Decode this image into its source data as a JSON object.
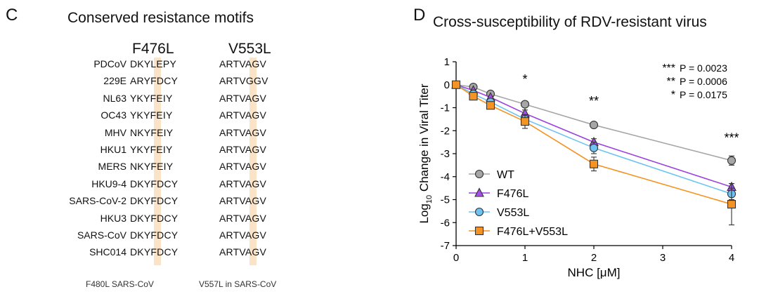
{
  "panel_c": {
    "letter": "C",
    "title": "Conserved resistance motifs",
    "headers": [
      "F476L",
      "V553L"
    ],
    "rows": [
      {
        "virus": "PDCoV",
        "motif1": "DKYLEPY",
        "motif2": "ARTVAGV"
      },
      {
        "virus": "229E",
        "motif1": "ARYFDCY",
        "motif2": "ARTVGGV"
      },
      {
        "virus": "NL63",
        "motif1": "YKYFEIY",
        "motif2": "ARTVAGV"
      },
      {
        "virus": "OC43",
        "motif1": "YKYFEIY",
        "motif2": "ARTVAGV"
      },
      {
        "virus": "MHV",
        "motif1": "NKYFEIY",
        "motif2": "ARTVAGV"
      },
      {
        "virus": "HKU1",
        "motif1": "YKYFEIY",
        "motif2": "ARTVAGV"
      },
      {
        "virus": "MERS",
        "motif1": "NKYFEIY",
        "motif2": "ARTVAGV"
      },
      {
        "virus": "HKU9-4",
        "motif1": "DKYFDCY",
        "motif2": "ARTVAGV"
      },
      {
        "virus": "SARS-CoV-2",
        "motif1": "DKYFDCY",
        "motif2": "ARTVAGV"
      },
      {
        "virus": "HKU3",
        "motif1": "DKYFDCY",
        "motif2": "ARTVAGV"
      },
      {
        "virus": "SARS-CoV",
        "motif1": "DKYFDCY",
        "motif2": "ARTVAGV"
      },
      {
        "virus": "SHC014",
        "motif1": "DKYFDCY",
        "motif2": "ARTVAGV"
      }
    ],
    "footnotes": [
      "F480L SARS-CoV",
      "V557L in SARS-CoV"
    ],
    "highlight_color": "#fbe3c8"
  },
  "panel_d": {
    "letter": "D",
    "title": "Cross-susceptibility of RDV-resistant virus"
  },
  "chart_data": {
    "type": "line",
    "title": "Cross-susceptibility of RDV-resistant virus",
    "xlabel": "NHC [μM]",
    "ylabel_prefix": "Log",
    "ylabel_sub": "10",
    "ylabel_rest": " Change in Viral Titer",
    "xlim": [
      0,
      4
    ],
    "ylim": [
      -7,
      1
    ],
    "xticks": [
      0,
      1,
      2,
      3,
      4
    ],
    "yticks": [
      1,
      0,
      -1,
      -2,
      -3,
      -4,
      -5,
      -6,
      -7
    ],
    "x": [
      0,
      0.25,
      0.5,
      1,
      2,
      4
    ],
    "series": [
      {
        "name": "WT",
        "marker": "circle",
        "color": "#a6a6a6",
        "line_color": "#a6a6a6",
        "values": [
          0,
          -0.1,
          -0.4,
          -0.85,
          -1.75,
          -3.3
        ],
        "errors": [
          0,
          0.05,
          0.05,
          0.1,
          0.1,
          0.2
        ]
      },
      {
        "name": "F476L",
        "marker": "triangle",
        "color": "#a64fe8",
        "line_color": "#9a40e0",
        "values": [
          0,
          -0.25,
          -0.55,
          -1.25,
          -2.5,
          -4.45
        ],
        "errors": [
          0,
          0.05,
          0.05,
          0.15,
          0.15,
          0.15
        ]
      },
      {
        "name": "V553L",
        "marker": "circle",
        "color": "#6ec3f2",
        "line_color": "#6ec3f2",
        "values": [
          0,
          -0.4,
          -0.75,
          -1.5,
          -2.75,
          -4.75
        ],
        "errors": [
          0,
          0.05,
          0.1,
          0.2,
          0.25,
          0.25
        ]
      },
      {
        "name": "F476L+V553L",
        "marker": "square",
        "color": "#f59323",
        "line_color": "#f59323",
        "values": [
          0,
          -0.5,
          -0.9,
          -1.6,
          -3.45,
          -5.2
        ],
        "errors": [
          0,
          0.05,
          0.1,
          0.3,
          0.3,
          0.9
        ]
      }
    ],
    "significance_marks": [
      {
        "x": 1,
        "y": 0.05,
        "label": "*"
      },
      {
        "x": 2,
        "y": -0.9,
        "label": "**"
      },
      {
        "x": 4,
        "y": -2.5,
        "label": "***"
      }
    ],
    "pvalues": [
      {
        "stars": "***",
        "text": "P = 0.0023"
      },
      {
        "stars": "**",
        "text": "P = 0.0006"
      },
      {
        "stars": "*",
        "text": "P = 0.0175"
      }
    ],
    "legend_position": "bottom-left",
    "grid": false
  }
}
